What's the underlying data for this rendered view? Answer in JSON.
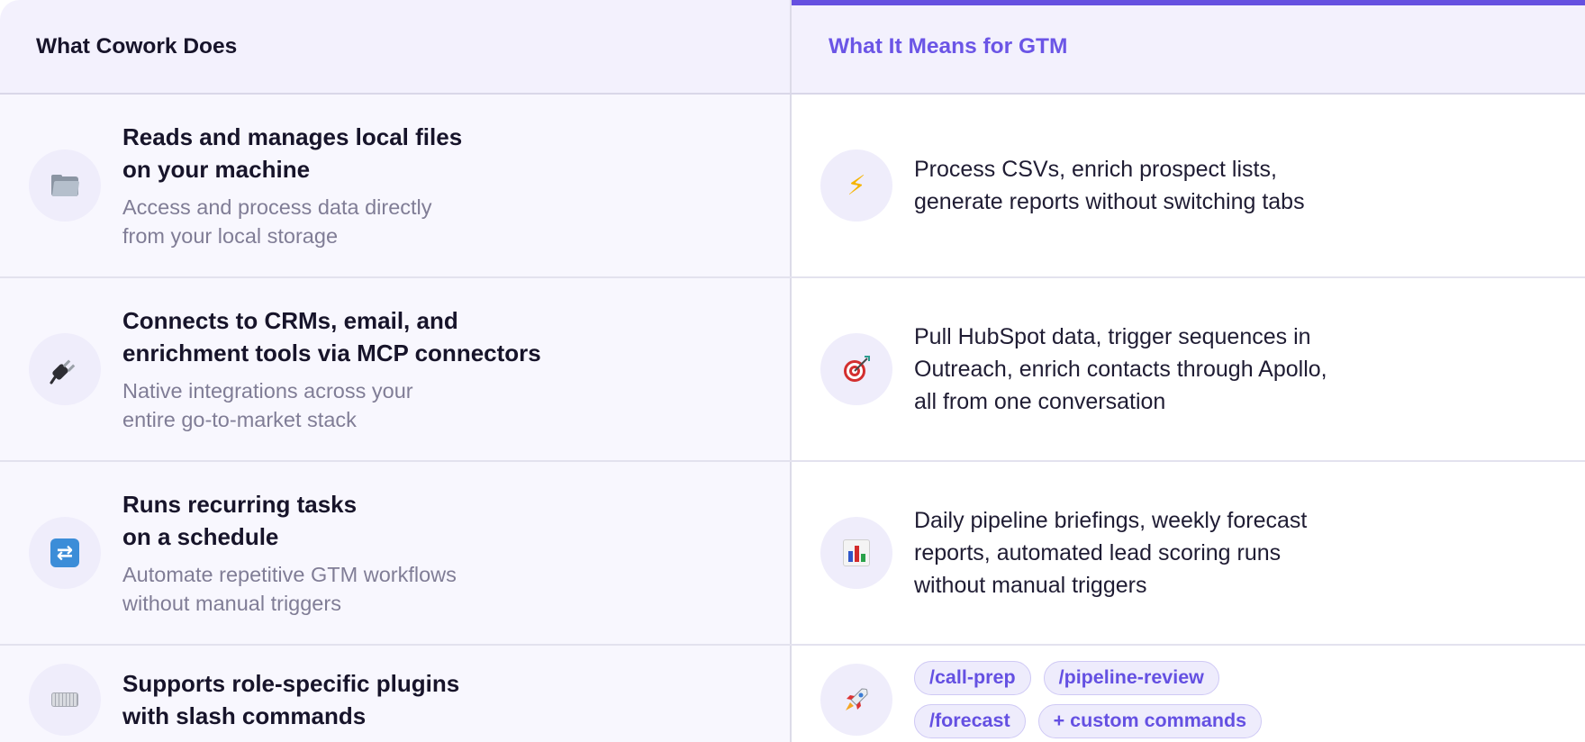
{
  "header": {
    "left": "What Cowork Does",
    "right": "What It Means for GTM"
  },
  "rows": [
    {
      "left_icon": "folder-icon",
      "title": "Reads and manages local files\non your machine",
      "subtitle": "Access and process data directly\nfrom your local storage",
      "right_icon": "lightning-icon",
      "right_text": "Process CSVs, enrich prospect lists,\ngenerate reports without switching tabs"
    },
    {
      "left_icon": "plug-icon",
      "title": "Connects to CRMs, email, and\nenrichment tools via MCP connectors",
      "subtitle": "Native integrations across your\nentire go-to-market stack",
      "right_icon": "target-icon",
      "right_text": "Pull HubSpot data, trigger sequences in\nOutreach, enrich contacts through Apollo,\nall from one conversation"
    },
    {
      "left_icon": "repeat-icon",
      "title": "Runs recurring tasks\non a schedule",
      "subtitle": "Automate repetitive GTM workflows\nwithout manual triggers",
      "right_icon": "bar-chart-icon",
      "right_text": "Daily pipeline briefings, weekly forecast\nreports, automated lead scoring runs\nwithout manual triggers"
    },
    {
      "left_icon": "keyboard-icon",
      "title": "Supports role-specific plugins\nwith slash commands",
      "right_icon": "rocket-icon",
      "tags": [
        "/call-prep",
        "/pipeline-review",
        "/forecast",
        "+ custom commands"
      ]
    }
  ],
  "colors": {
    "accent": "#6550e0",
    "header_bg": "#f3f1fd",
    "left_bg": "#f8f7fe",
    "icon_bg": "#efedfb"
  }
}
